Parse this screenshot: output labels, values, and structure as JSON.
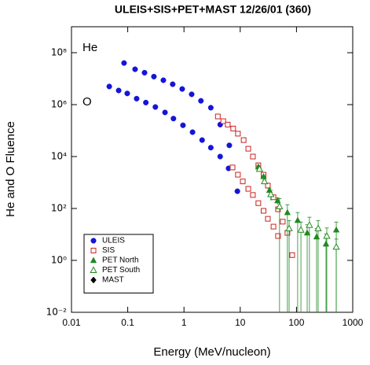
{
  "chart_data": {
    "type": "scatter",
    "title": "ULEIS+SIS+PET+MAST 12/26/01 (360)",
    "x_label": "Energy (MeV/nucleon)",
    "y_label": "He and O Fluence",
    "annotations": [
      "He",
      "O"
    ],
    "x_log": true,
    "y_log": true,
    "xlim": [
      0.01,
      1000
    ],
    "ylim": [
      0.01,
      1000000000
    ],
    "xticks": [
      0.01,
      0.1,
      1,
      10,
      100,
      1000
    ],
    "yticks": [
      {
        "value": 0.01,
        "label": "10⁻²"
      },
      {
        "value": 1,
        "label": "10⁰"
      },
      {
        "value": 100,
        "label": "10²"
      },
      {
        "value": 10000,
        "label": "10⁴"
      },
      {
        "value": 1000000,
        "label": "10⁶"
      },
      {
        "value": 100000000,
        "label": "10⁸"
      }
    ],
    "legend": "lower left",
    "series": [
      {
        "name": "ULEIS",
        "color": "#1515d6",
        "marker": "circle",
        "x": [
          0.086,
          0.135,
          0.199,
          0.292,
          0.43,
          0.63,
          0.93,
          1.37,
          2.0,
          3.0,
          4.4,
          6.4,
          0.047,
          0.069,
          0.098,
          0.144,
          0.21,
          0.31,
          0.46,
          0.65,
          0.96,
          1.42,
          2.1,
          3.0,
          4.4,
          6.2,
          8.9
        ],
        "values": [
          40000000,
          23000000,
          17000000,
          12000000,
          8700000,
          6100000,
          4000000,
          2500000,
          1400000,
          760000,
          170000,
          27000,
          5000000,
          3500000,
          2700000,
          1700000,
          1200000,
          810000,
          500000,
          290000,
          160000,
          87000,
          43000,
          22000,
          10000,
          3500,
          460
        ]
      },
      {
        "name": "SIS",
        "color": "#cc2020",
        "marker": "square-open",
        "x": [
          4.0,
          5.0,
          6.0,
          7.5,
          9.1,
          11.5,
          13.9,
          16.8,
          21,
          26,
          31,
          39,
          47,
          57,
          69,
          84,
          7.3,
          9.1,
          11.1,
          13.9,
          16.8,
          21,
          26,
          31,
          39,
          47
        ],
        "values": [
          350000,
          230000,
          170000,
          120000,
          76000,
          43000,
          20000,
          10000,
          4600,
          2000,
          760,
          270,
          93,
          31,
          11.5,
          1.6,
          3800,
          2000,
          1100,
          570,
          330,
          160,
          81,
          40,
          20,
          8.7
        ]
      },
      {
        "name": "PET North",
        "color": "#1f8a1f",
        "marker": "triangle",
        "x": [
          21,
          26,
          33,
          46,
          69,
          105,
          155,
          228,
          335,
          510
        ],
        "values": [
          4000,
          1700,
          500,
          200,
          70,
          35,
          11.5,
          8.1,
          4.3,
          15
        ],
        "errors": [
          400,
          170,
          100,
          60,
          70,
          35,
          12,
          9,
          6,
          15
        ]
      },
      {
        "name": "PET South",
        "color": "#1f8a1f",
        "marker": "triangle-open",
        "x": [
          22,
          27,
          35,
          50,
          74,
          120,
          170,
          243,
          346,
          510
        ],
        "values": [
          3300,
          1100,
          350,
          120,
          17,
          15,
          23,
          17,
          8.7,
          3.3
        ],
        "errors": [
          330,
          150,
          150,
          120,
          17,
          15,
          23,
          17,
          9,
          3.3
        ]
      },
      {
        "name": "MAST",
        "color": "#000000",
        "marker": "diamond",
        "x": [],
        "values": []
      }
    ]
  }
}
